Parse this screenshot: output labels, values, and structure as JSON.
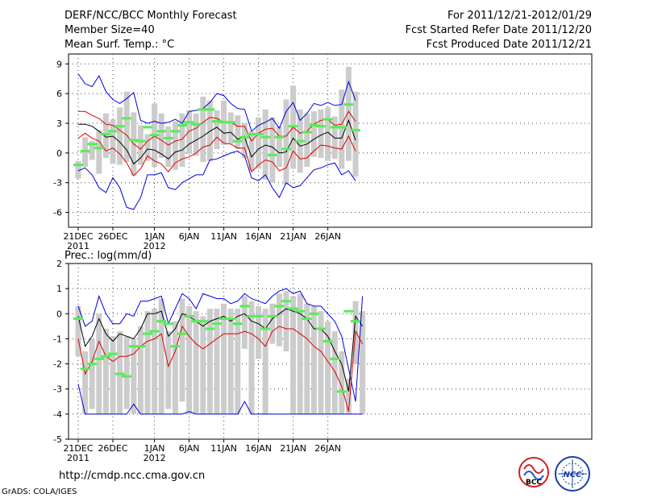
{
  "header": {
    "title": "DERF/NCC/BCC Monthly Forecast",
    "member_size": "Member Size=40",
    "variable": "Mean Surf. Temp.: °C",
    "valid_range": "For 2011/12/21-2012/01/29",
    "fcst_started": "Fcst Started Refer Date 2011/12/20",
    "fcst_produced": "Fcst Produced Date 2011/12/21"
  },
  "footer": {
    "url": "http://cmdp.ncc.cma.gov.cn",
    "grads_credit": "GrADS: COLA/IGES",
    "logo_bcc": "BCC",
    "logo_ncc": "NCC"
  },
  "colors": {
    "box": "#cccccc",
    "ensemble_mean": "#000000",
    "sd_lines": "#dd0000",
    "extreme_lines": "#0000dd",
    "member_marker": "#55ee55",
    "grid": "#444444"
  },
  "chart_data": [
    {
      "type": "box",
      "title": "Mean Surf. Temp.: °C",
      "x_tick_labels": [
        {
          "day": 0,
          "label": "21DEC",
          "sublabel": "2011"
        },
        {
          "day": 5,
          "label": "26DEC"
        },
        {
          "day": 11,
          "label": "1JAN",
          "sublabel": "2012"
        },
        {
          "day": 16,
          "label": "6JAN"
        },
        {
          "day": 21,
          "label": "11JAN"
        },
        {
          "day": 26,
          "label": "16JAN"
        },
        {
          "day": 31,
          "label": "21JAN"
        },
        {
          "day": 36,
          "label": "26JAN"
        }
      ],
      "ylim": [
        -7.5,
        10
      ],
      "y_ticks": [
        -6,
        -3,
        0,
        3,
        6,
        9
      ],
      "series": [
        {
          "name": "max",
          "values": [
            8.0,
            7.0,
            6.7,
            7.8,
            6.2,
            5.4,
            5.0,
            5.5,
            6.1,
            3.3,
            3.0,
            3.2,
            3.0,
            3.1,
            3.4,
            3.0,
            4.2,
            4.3,
            4.5,
            5.1,
            6.0,
            5.8,
            5.0,
            4.5,
            4.4,
            2.2,
            2.8,
            3.1,
            3.5,
            2.5,
            4.2,
            5.1,
            3.3,
            4.0,
            5.0,
            4.8,
            5.1,
            4.8,
            4.9,
            7.2,
            5.3
          ]
        },
        {
          "name": "mean_plus_sd",
          "values": [
            4.2,
            4.2,
            3.8,
            3.5,
            2.9,
            2.8,
            2.3,
            1.8,
            0.9,
            0.4,
            1.2,
            1.7,
            1.3,
            0.8,
            1.2,
            1.4,
            2.2,
            2.5,
            3.1,
            3.6,
            3.5,
            3.1,
            3.1,
            2.7,
            2.7,
            1.2,
            2.0,
            2.4,
            2.5,
            1.7,
            1.7,
            2.6,
            2.0,
            2.2,
            2.9,
            3.3,
            3.4,
            2.8,
            2.9,
            4.2,
            3.2
          ]
        },
        {
          "name": "mean",
          "values": [
            2.9,
            2.9,
            2.7,
            2.2,
            1.6,
            1.7,
            1.1,
            0.3,
            -1.1,
            -0.5,
            0.4,
            0.3,
            -0.1,
            -0.6,
            0.1,
            0.3,
            0.9,
            1.3,
            1.7,
            2.2,
            2.6,
            2.0,
            2.1,
            1.4,
            1.6,
            -0.4,
            0.4,
            0.8,
            0.6,
            0.0,
            0.1,
            1.5,
            0.7,
            0.9,
            1.4,
            1.8,
            2.1,
            1.5,
            1.5,
            3.3,
            1.3
          ]
        },
        {
          "name": "mean_minus_sd",
          "values": [
            1.5,
            2.0,
            1.5,
            1.2,
            0.2,
            0.5,
            -0.1,
            -1.0,
            -2.3,
            -1.6,
            -0.3,
            -0.8,
            -1.1,
            -1.9,
            -1.0,
            -0.6,
            -0.4,
            0.0,
            0.6,
            0.8,
            1.6,
            1.0,
            0.9,
            0.5,
            0.5,
            -1.9,
            -1.2,
            -0.7,
            -0.9,
            -1.8,
            -1.5,
            0.2,
            -0.6,
            -0.5,
            0.2,
            0.8,
            0.7,
            0.5,
            0.4,
            1.7,
            0.2
          ]
        },
        {
          "name": "min",
          "values": [
            -1.8,
            -1.5,
            -2.2,
            -3.5,
            -4.0,
            -2.5,
            -3.5,
            -5.5,
            -5.7,
            -4.5,
            -2.2,
            -2.2,
            -2.0,
            -3.5,
            -3.7,
            -3.0,
            -2.6,
            -2.2,
            -2.2,
            -0.7,
            -0.6,
            -0.3,
            0.0,
            0.2,
            -0.3,
            -2.5,
            -2.8,
            -2.2,
            -3.5,
            -4.5,
            -3.0,
            -3.5,
            -3.3,
            -2.5,
            -1.7,
            -1.5,
            -1.2,
            -1.0,
            -2.2,
            -1.8,
            -2.8
          ]
        },
        {
          "name": "member_marker",
          "values": [
            -1.2,
            0.2,
            0.9,
            0.5,
            1.9,
            2.2,
            2.7,
            3.5,
            1.3,
            1.2,
            2.6,
            1.8,
            2.2,
            1.5,
            2.2,
            2.8,
            3.1,
            2.9,
            4.4,
            4.4,
            3.2,
            3.1,
            3.1,
            1.2,
            1.6,
            1.9,
            1.9,
            1.6,
            -0.2,
            1.6,
            0.4,
            2.7,
            1.2,
            2.1,
            2.8,
            2.7,
            3.4,
            2.6,
            2.6,
            4.9,
            2.3
          ]
        },
        {
          "name": "box_top",
          "values": [
            -0.8,
            1.6,
            1.2,
            2.3,
            4.0,
            3.4,
            4.6,
            6.2,
            4.1,
            2.8,
            1.9,
            5.0,
            4.0,
            2.7,
            3.2,
            4.0,
            4.3,
            4.0,
            5.7,
            5.3,
            4.3,
            5.3,
            4.1,
            3.8,
            3.0,
            2.2,
            3.6,
            4.4,
            3.6,
            2.7,
            5.4,
            6.8,
            4.4,
            4.0,
            4.2,
            4.4,
            4.6,
            3.7,
            6.4,
            8.7,
            6.2
          ]
        },
        {
          "name": "box_bottom",
          "values": [
            -2.6,
            -1.4,
            -0.7,
            -2.1,
            -0.5,
            -1.1,
            -1.2,
            -0.9,
            -2.3,
            -1.2,
            -0.8,
            -1.4,
            -0.5,
            -1.4,
            -1.7,
            -1.4,
            -0.1,
            -0.3,
            -0.9,
            -0.8,
            0.4,
            0.8,
            0.9,
            0.4,
            -0.5,
            -1.8,
            -1.6,
            -2.7,
            -3.0,
            -1.4,
            -3.2,
            -1.6,
            -2.0,
            -1.4,
            -0.4,
            -0.5,
            -0.8,
            -0.6,
            -1.6,
            -0.8,
            -2.4
          ]
        }
      ]
    },
    {
      "type": "box",
      "title": "Prec.: log(mm/d)",
      "x_tick_labels": [
        {
          "day": 0,
          "label": "21DEC",
          "sublabel": "2011"
        },
        {
          "day": 5,
          "label": "26DEC"
        },
        {
          "day": 11,
          "label": "1JAN",
          "sublabel": "2012"
        },
        {
          "day": 16,
          "label": "6JAN"
        },
        {
          "day": 21,
          "label": "11JAN"
        },
        {
          "day": 26,
          "label": "16JAN"
        },
        {
          "day": 31,
          "label": "21JAN"
        },
        {
          "day": 36,
          "label": "26JAN"
        }
      ],
      "ylim": [
        -5,
        2
      ],
      "y_ticks": [
        -5,
        -4,
        -3,
        -2,
        -1,
        0,
        1,
        2
      ],
      "series": [
        {
          "name": "max",
          "values": [
            0.3,
            -0.5,
            -0.3,
            0.7,
            0.0,
            -0.4,
            -0.4,
            0.0,
            -0.1,
            0.5,
            0.5,
            0.6,
            0.7,
            -0.4,
            0.2,
            0.8,
            0.6,
            0.2,
            0.8,
            0.7,
            0.6,
            0.6,
            0.4,
            0.5,
            0.8,
            0.6,
            0.5,
            0.4,
            0.7,
            0.9,
            1.0,
            0.8,
            0.9,
            0.4,
            0.3,
            0.3,
            0.0,
            -0.3,
            -0.9,
            -2.2,
            -3.5,
            0.7
          ]
        },
        {
          "name": "mean",
          "values": [
            -0.1,
            -1.3,
            -0.9,
            -0.2,
            -0.8,
            -1.1,
            -0.8,
            -0.9,
            -1.0,
            -0.6,
            0.0,
            0.0,
            0.1,
            -0.9,
            -0.6,
            0.0,
            -0.1,
            -0.3,
            -0.5,
            -0.3,
            -0.2,
            -0.1,
            -0.3,
            -0.1,
            0.0,
            -0.3,
            -0.4,
            -0.6,
            -0.2,
            0.0,
            0.2,
            0.1,
            0.0,
            -0.2,
            -0.6,
            -0.6,
            -0.9,
            -1.5,
            -2.0,
            -3.1,
            -0.1,
            -0.5
          ]
        },
        {
          "name": "mean_minus_sd",
          "values": [
            -1.0,
            -2.4,
            -1.9,
            -1.1,
            -1.7,
            -1.9,
            -1.7,
            -1.7,
            -1.6,
            -1.3,
            -1.1,
            -1.0,
            -0.8,
            -2.1,
            -1.5,
            -0.5,
            -0.9,
            -1.2,
            -1.4,
            -1.2,
            -1.0,
            -0.8,
            -0.8,
            -0.8,
            -0.7,
            -0.8,
            -1.0,
            -1.3,
            -0.7,
            -0.5,
            -0.6,
            -0.6,
            -0.8,
            -1.0,
            -1.3,
            -1.5,
            -1.9,
            -2.3,
            -2.9,
            -3.9,
            -0.7,
            -1.2
          ]
        },
        {
          "name": "min",
          "values": [
            -2.8,
            -4.0,
            -4.0,
            -4.0,
            -4.0,
            -4.0,
            -4.0,
            -4.0,
            -3.6,
            -4.0,
            -4.0,
            -4.0,
            -4.0,
            -4.0,
            -4.0,
            -4.0,
            -3.9,
            -4.0,
            -4.0,
            -4.0,
            -4.0,
            -4.0,
            -4.0,
            -4.0,
            -3.5,
            -4.0,
            -4.0,
            -4.0,
            -4.0,
            -4.0,
            -4.0,
            -4.0,
            -4.0,
            -4.0,
            -4.0,
            -4.0,
            -4.0,
            -4.0,
            -4.0,
            -4.0,
            -4.0,
            -4.0
          ]
        },
        {
          "name": "member_marker",
          "values": [
            -0.2,
            -2.2,
            -2.0,
            -1.8,
            -1.7,
            -1.6,
            -2.4,
            -2.5,
            -1.3,
            -1.3,
            -0.8,
            -0.7,
            -0.3,
            -0.4,
            -1.3,
            -0.8,
            -0.1,
            -0.3,
            -0.3,
            -0.6,
            -0.4,
            -0.2,
            -0.2,
            -0.4,
            0.3,
            -0.1,
            -0.1,
            -0.6,
            -0.1,
            0.3,
            0.5,
            0.2,
            0.1,
            -0.2,
            0.0,
            -0.6,
            -1.1,
            -1.8,
            -3.1,
            0.1,
            -0.3
          ]
        },
        {
          "name": "box_top",
          "values": [
            0.3,
            -1.5,
            -1.0,
            0.0,
            -0.6,
            -0.9,
            -0.7,
            -0.9,
            -1.0,
            -0.5,
            0.1,
            0.2,
            0.6,
            -0.7,
            -0.3,
            0.6,
            0.3,
            0.1,
            -0.1,
            0.2,
            0.2,
            0.4,
            0.2,
            0.2,
            0.7,
            0.5,
            0.3,
            0.2,
            0.4,
            0.8,
            0.9,
            0.7,
            0.8,
            0.4,
            0.3,
            0.1,
            -0.3,
            -0.7,
            -1.5,
            -2.6,
            0.5,
            0.1
          ]
        },
        {
          "name": "box_bottom",
          "values": [
            -1.7,
            -4.0,
            -3.8,
            -4.0,
            -4.0,
            -4.0,
            -4.0,
            -3.8,
            -4.0,
            -4.0,
            -4.0,
            -4.0,
            -4.0,
            -3.8,
            -4.0,
            -3.5,
            -4.0,
            -4.0,
            -4.0,
            -4.0,
            -4.0,
            -4.0,
            -4.0,
            -4.0,
            -1.4,
            -4.0,
            -1.8,
            -4.0,
            -1.2,
            -1.3,
            -1.5,
            -4.0,
            -4.0,
            -4.0,
            -4.0,
            -4.0,
            -4.0,
            -4.0,
            -4.0,
            -4.0,
            -2.0,
            -4.0
          ]
        }
      ]
    }
  ]
}
